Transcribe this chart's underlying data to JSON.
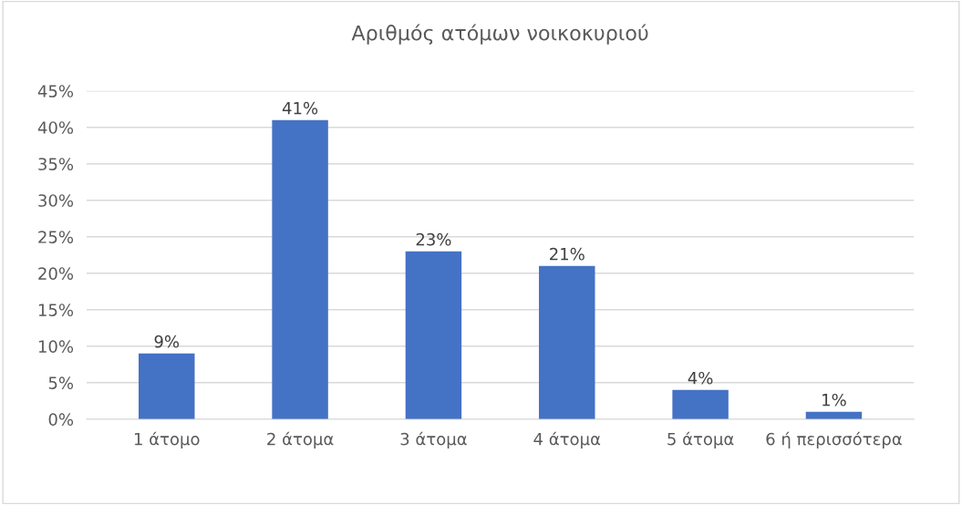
{
  "chart_data": {
    "type": "bar",
    "title": "Αριθμός ατόμων νοικοκυριού",
    "categories": [
      "1 άτομο",
      "2 άτομα",
      "3 άτομα",
      "4 άτομα",
      "5 άτομα",
      "6 ή περισσότερα"
    ],
    "values": [
      9,
      41,
      23,
      21,
      4,
      1
    ],
    "value_labels": [
      "9%",
      "41%",
      "23%",
      "21%",
      "4%",
      "1%"
    ],
    "color": "#4472c4",
    "ylim": [
      0,
      45
    ],
    "yticks": [
      {
        "value": 0,
        "label": "0%"
      },
      {
        "value": 5,
        "label": "5%"
      },
      {
        "value": 10,
        "label": "10%"
      },
      {
        "value": 15,
        "label": "15%"
      },
      {
        "value": 20,
        "label": "20%"
      },
      {
        "value": 25,
        "label": "25%"
      },
      {
        "value": 30,
        "label": "30%"
      },
      {
        "value": 35,
        "label": "35%"
      },
      {
        "value": 40,
        "label": "40%"
      },
      {
        "value": 45,
        "label": "45%"
      }
    ],
    "grid": "y",
    "legend": false
  }
}
